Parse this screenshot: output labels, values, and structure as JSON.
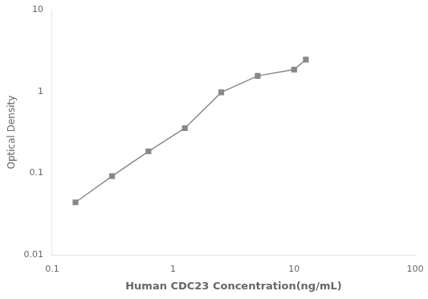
{
  "chart_data": {
    "type": "line",
    "x": [
      0.156,
      0.313,
      0.625,
      1.25,
      2.5,
      5.0,
      10.0,
      12.5
    ],
    "values": [
      0.044,
      0.092,
      0.185,
      0.355,
      0.975,
      1.55,
      1.85,
      2.45
    ],
    "xlabel": "Human CDC23 Concentration(ng/mL)",
    "ylabel": "Optical Density",
    "xlim": [
      0.1,
      100
    ],
    "ylim": [
      0.01,
      10
    ],
    "xticks": [
      0.1,
      1,
      10,
      100
    ],
    "yticks": [
      0.01,
      0.1,
      1,
      10
    ],
    "log": true,
    "grid": false,
    "color": "#888888",
    "marker": "square"
  }
}
